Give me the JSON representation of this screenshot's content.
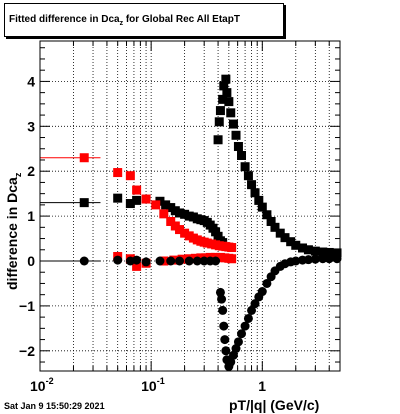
{
  "chart_data": {
    "type": "scatter",
    "title": {
      "prefix": "Fitted difference in Dca",
      "sub": "z",
      "suffix": " for Global Rec All EtapT"
    },
    "ylabel": {
      "main": "difference in Dca",
      "sub": "z"
    },
    "xlabel": "pT/|q| (GeV/c)",
    "xscale": "log",
    "xlim": [
      0.01,
      5.0
    ],
    "ylim": [
      -2.45,
      4.9
    ],
    "grid": true,
    "x_ticks": [
      {
        "value": 0.01,
        "base": "10",
        "exp": "-2"
      },
      {
        "value": 0.1,
        "base": "10",
        "exp": "-1"
      },
      {
        "value": 1,
        "base": "1",
        "exp": ""
      }
    ],
    "y_ticks": [
      {
        "value": -2,
        "label": "−2"
      },
      {
        "value": -1,
        "label": "−1"
      },
      {
        "value": 0,
        "label": "0"
      },
      {
        "value": 1,
        "label": "1"
      },
      {
        "value": 2,
        "label": "2"
      },
      {
        "value": 3,
        "label": "3"
      },
      {
        "value": 4,
        "label": "4"
      }
    ],
    "series": [
      {
        "color": "#000000",
        "marker": "square",
        "points": [
          {
            "x": 0.025,
            "y": 1.3,
            "xerr": [
              0.01,
              0.035
            ]
          },
          {
            "x": 0.05,
            "y": 1.4
          },
          {
            "x": 0.065,
            "y": 1.28
          },
          {
            "x": 0.074,
            "y": 1.35
          },
          {
            "x": 0.12,
            "y": 1.33
          },
          {
            "x": 0.135,
            "y": 1.25
          },
          {
            "x": 0.15,
            "y": 1.19
          },
          {
            "x": 0.165,
            "y": 1.12
          },
          {
            "x": 0.18,
            "y": 1.07
          },
          {
            "x": 0.2,
            "y": 1.04
          },
          {
            "x": 0.22,
            "y": 1.0
          },
          {
            "x": 0.24,
            "y": 0.98
          },
          {
            "x": 0.26,
            "y": 0.94
          },
          {
            "x": 0.28,
            "y": 0.92
          },
          {
            "x": 0.3,
            "y": 0.9
          },
          {
            "x": 0.32,
            "y": 0.86
          },
          {
            "x": 0.34,
            "y": 0.8
          },
          {
            "x": 0.36,
            "y": 0.73
          },
          {
            "x": 0.38,
            "y": 0.65
          },
          {
            "x": 0.4,
            "y": 0.55
          },
          {
            "x": 0.42,
            "y": 0.45
          },
          {
            "x": 0.44,
            "y": 0.41
          },
          {
            "x": 0.4,
            "y": 2.7
          },
          {
            "x": 0.41,
            "y": 3.1
          },
          {
            "x": 0.42,
            "y": 3.35
          },
          {
            "x": 0.44,
            "y": 3.6
          },
          {
            "x": 0.45,
            "y": 3.9
          },
          {
            "x": 0.47,
            "y": 4.05
          },
          {
            "x": 0.48,
            "y": 3.75
          },
          {
            "x": 0.5,
            "y": 3.55
          },
          {
            "x": 0.52,
            "y": 3.3
          },
          {
            "x": 0.55,
            "y": 3.05
          },
          {
            "x": 0.58,
            "y": 2.8
          },
          {
            "x": 0.61,
            "y": 2.55
          },
          {
            "x": 0.65,
            "y": 2.35
          },
          {
            "x": 0.7,
            "y": 2.1
          },
          {
            "x": 0.75,
            "y": 1.9
          },
          {
            "x": 0.8,
            "y": 1.7
          },
          {
            "x": 0.86,
            "y": 1.52
          },
          {
            "x": 0.93,
            "y": 1.35
          },
          {
            "x": 1.0,
            "y": 1.2
          },
          {
            "x": 1.1,
            "y": 1.03
          },
          {
            "x": 1.2,
            "y": 0.88
          },
          {
            "x": 1.3,
            "y": 0.75
          },
          {
            "x": 1.45,
            "y": 0.62
          },
          {
            "x": 1.6,
            "y": 0.52
          },
          {
            "x": 1.8,
            "y": 0.43
          },
          {
            "x": 2.0,
            "y": 0.35
          },
          {
            "x": 2.3,
            "y": 0.29
          },
          {
            "x": 2.6,
            "y": 0.25
          },
          {
            "x": 3.0,
            "y": 0.22
          },
          {
            "x": 3.5,
            "y": 0.2
          },
          {
            "x": 4.0,
            "y": 0.19
          },
          {
            "x": 4.7,
            "y": 0.18
          }
        ]
      },
      {
        "color": "#ff0000",
        "marker": "square",
        "points": [
          {
            "x": 0.025,
            "y": 2.3,
            "xerr": [
              0.01,
              0.035
            ]
          },
          {
            "x": 0.05,
            "y": 1.97
          },
          {
            "x": 0.065,
            "y": 1.9
          },
          {
            "x": 0.074,
            "y": 1.58
          },
          {
            "x": 0.09,
            "y": 1.38
          },
          {
            "x": 0.11,
            "y": 1.25
          },
          {
            "x": 0.13,
            "y": 1.05
          },
          {
            "x": 0.15,
            "y": 0.88
          },
          {
            "x": 0.165,
            "y": 0.78
          },
          {
            "x": 0.18,
            "y": 0.7
          },
          {
            "x": 0.2,
            "y": 0.62
          },
          {
            "x": 0.22,
            "y": 0.56
          },
          {
            "x": 0.24,
            "y": 0.51
          },
          {
            "x": 0.26,
            "y": 0.47
          },
          {
            "x": 0.28,
            "y": 0.44
          },
          {
            "x": 0.3,
            "y": 0.42
          },
          {
            "x": 0.32,
            "y": 0.4
          },
          {
            "x": 0.35,
            "y": 0.38
          },
          {
            "x": 0.38,
            "y": 0.36
          },
          {
            "x": 0.41,
            "y": 0.34
          },
          {
            "x": 0.44,
            "y": 0.33
          },
          {
            "x": 0.47,
            "y": 0.32
          },
          {
            "x": 0.5,
            "y": 0.31
          },
          {
            "x": 0.53,
            "y": 0.3
          },
          {
            "x": 0.05,
            "y": 0.1
          },
          {
            "x": 0.065,
            "y": 0.05
          },
          {
            "x": 0.074,
            "y": -0.12
          },
          {
            "x": 0.09,
            "y": -0.05
          },
          {
            "x": 0.13,
            "y": 0.0
          },
          {
            "x": 0.16,
            "y": 0.02
          },
          {
            "x": 0.19,
            "y": 0.04
          },
          {
            "x": 0.22,
            "y": 0.05
          },
          {
            "x": 0.25,
            "y": 0.06
          },
          {
            "x": 0.28,
            "y": 0.07
          },
          {
            "x": 0.31,
            "y": 0.07
          },
          {
            "x": 0.34,
            "y": 0.08
          },
          {
            "x": 0.38,
            "y": 0.08
          },
          {
            "x": 0.42,
            "y": 0.08
          },
          {
            "x": 0.46,
            "y": 0.07
          },
          {
            "x": 0.5,
            "y": 0.06
          },
          {
            "x": 0.53,
            "y": 0.05
          }
        ]
      },
      {
        "color": "#000000",
        "marker": "circle",
        "points": [
          {
            "x": 0.025,
            "y": 0.0,
            "xerr": [
              0.01,
              0.035
            ]
          },
          {
            "x": 0.05,
            "y": 0.02
          },
          {
            "x": 0.065,
            "y": 0.0
          },
          {
            "x": 0.074,
            "y": 0.02
          },
          {
            "x": 0.09,
            "y": -0.02
          },
          {
            "x": 0.12,
            "y": 0.0
          },
          {
            "x": 0.15,
            "y": 0.0
          },
          {
            "x": 0.18,
            "y": 0.0
          },
          {
            "x": 0.22,
            "y": 0.0
          },
          {
            "x": 0.26,
            "y": 0.0
          },
          {
            "x": 0.3,
            "y": 0.0
          },
          {
            "x": 0.34,
            "y": 0.0
          },
          {
            "x": 0.38,
            "y": 0.0
          },
          {
            "x": 0.42,
            "y": -0.7
          },
          {
            "x": 0.43,
            "y": -0.85
          },
          {
            "x": 0.44,
            "y": -1.1
          },
          {
            "x": 0.45,
            "y": -1.45
          },
          {
            "x": 0.46,
            "y": -1.75
          },
          {
            "x": 0.47,
            "y": -2.0
          },
          {
            "x": 0.48,
            "y": -2.2
          },
          {
            "x": 0.5,
            "y": -2.35
          },
          {
            "x": 0.52,
            "y": -2.25
          },
          {
            "x": 0.55,
            "y": -2.1
          },
          {
            "x": 0.58,
            "y": -1.95
          },
          {
            "x": 0.61,
            "y": -1.8
          },
          {
            "x": 0.65,
            "y": -1.62
          },
          {
            "x": 0.7,
            "y": -1.45
          },
          {
            "x": 0.75,
            "y": -1.28
          },
          {
            "x": 0.8,
            "y": -1.1
          },
          {
            "x": 0.86,
            "y": -0.95
          },
          {
            "x": 0.93,
            "y": -0.8
          },
          {
            "x": 1.0,
            "y": -0.68
          },
          {
            "x": 1.1,
            "y": -0.5
          },
          {
            "x": 1.2,
            "y": -0.35
          },
          {
            "x": 1.3,
            "y": -0.22
          },
          {
            "x": 1.45,
            "y": -0.12
          },
          {
            "x": 1.6,
            "y": -0.06
          },
          {
            "x": 1.8,
            "y": -0.02
          },
          {
            "x": 2.0,
            "y": 0.0
          },
          {
            "x": 2.3,
            "y": 0.02
          },
          {
            "x": 2.6,
            "y": 0.03
          },
          {
            "x": 3.0,
            "y": 0.04
          },
          {
            "x": 3.5,
            "y": 0.05
          },
          {
            "x": 4.0,
            "y": 0.05
          },
          {
            "x": 4.7,
            "y": 0.05
          }
        ]
      }
    ]
  },
  "footer": {
    "timestamp": "Sat Jan  9 15:50:29 2021"
  }
}
